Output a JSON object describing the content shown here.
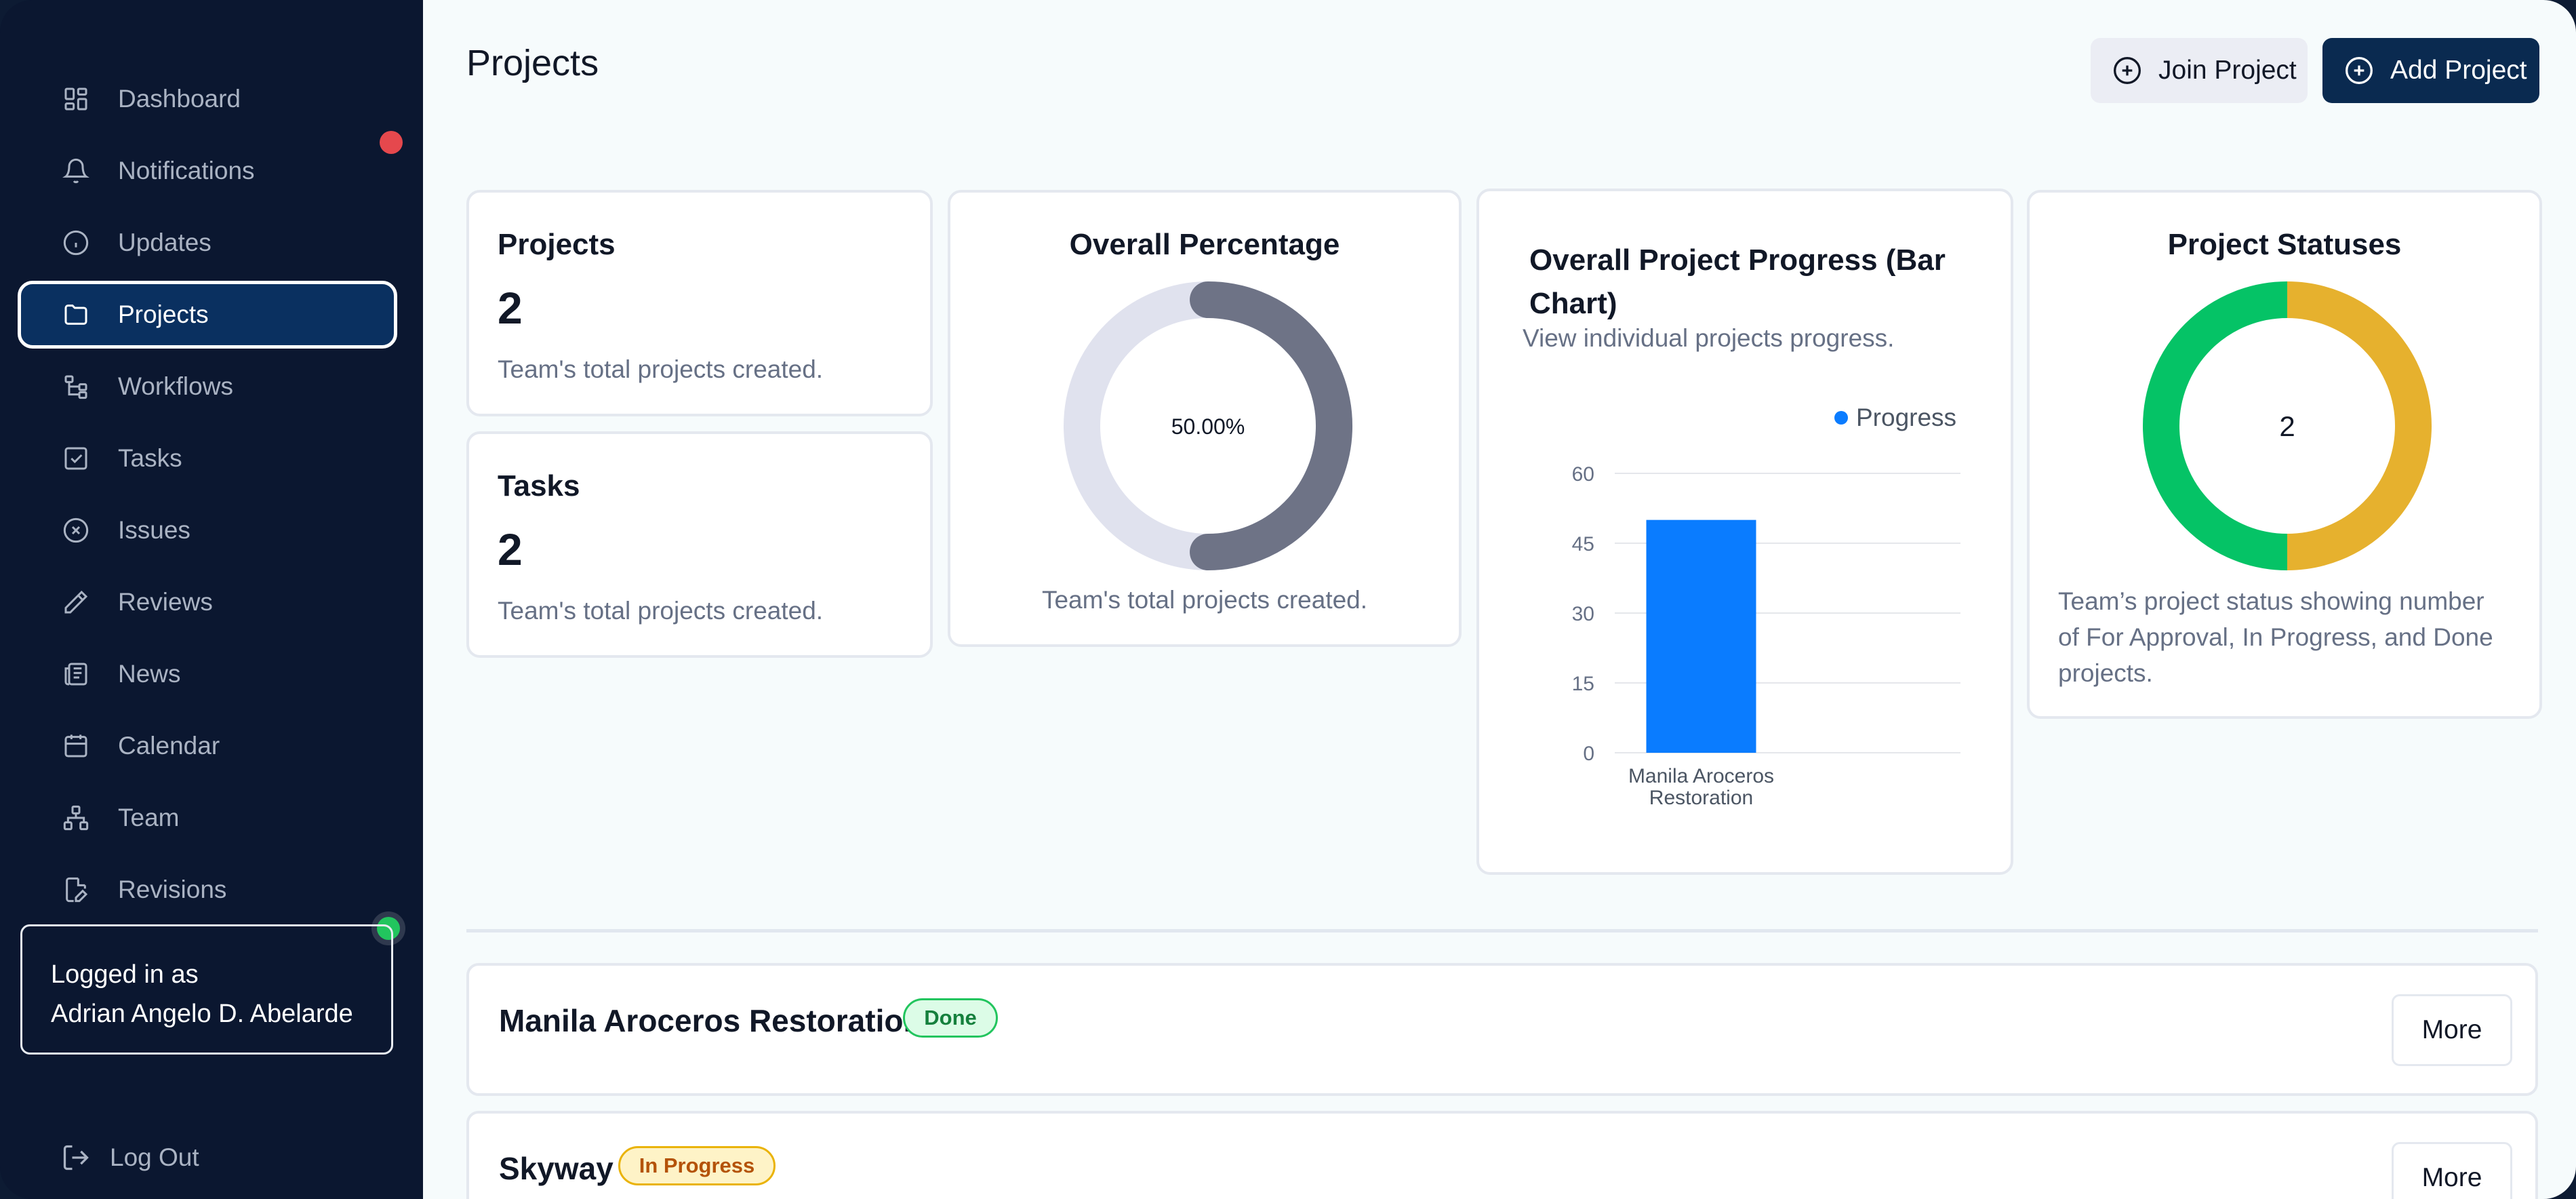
{
  "sidebar": {
    "items": [
      {
        "label": "Dashboard",
        "icon": "dashboard-icon"
      },
      {
        "label": "Notifications",
        "icon": "bell-icon"
      },
      {
        "label": "Updates",
        "icon": "info-icon"
      },
      {
        "label": "Projects",
        "icon": "folder-icon",
        "active": true
      },
      {
        "label": "Workflows",
        "icon": "workflow-icon"
      },
      {
        "label": "Tasks",
        "icon": "checkbox-icon"
      },
      {
        "label": "Issues",
        "icon": "x-circle-icon"
      },
      {
        "label": "Reviews",
        "icon": "pencil-icon"
      },
      {
        "label": "News",
        "icon": "newspaper-icon"
      },
      {
        "label": "Calendar",
        "icon": "calendar-icon"
      },
      {
        "label": "Team",
        "icon": "team-icon"
      },
      {
        "label": "Revisions",
        "icon": "file-edit-icon"
      }
    ],
    "login_label": "Logged in as",
    "user_name": "Adrian Angelo D. Abelarde",
    "logout_label": "Log Out"
  },
  "header": {
    "title": "Projects",
    "join_label": "Join Project",
    "add_label": "Add Project"
  },
  "stats": {
    "projects": {
      "title": "Projects",
      "value": "2",
      "desc": "Team's total projects created."
    },
    "tasks": {
      "title": "Tasks",
      "value": "2",
      "desc": "Team's total projects created."
    }
  },
  "overall_percentage": {
    "title": "Overall Percentage",
    "label": "50.00%",
    "desc": "Team's total projects created.",
    "fraction": 0.5
  },
  "bar_card": {
    "title_line1": "Overall Project Progress (Bar",
    "title_line2": "Chart)",
    "subtitle": "View individual projects progress."
  },
  "status_card": {
    "title": "Project Statuses",
    "center_label": "2",
    "desc_line1": "Team’s project status showing number",
    "desc_line2": "of For Approval, In Progress, and Done",
    "desc_line3": "projects."
  },
  "chart_data": [
    {
      "type": "bar",
      "title": "Overall Project Progress (Bar Chart)",
      "categories": [
        [
          "Manila Aroceros",
          "Restoration"
        ]
      ],
      "series": [
        {
          "name": "Progress",
          "values": [
            50
          ],
          "color": "#0a7cff"
        }
      ],
      "y_ticks": [
        0,
        15,
        30,
        45,
        60
      ],
      "ylim": [
        0,
        60
      ],
      "legend": "top-right",
      "grid": true
    },
    {
      "type": "pie",
      "title": "Project Statuses",
      "donut": true,
      "center_text": "2",
      "slices": [
        {
          "value": 1,
          "color": "#e6b12e"
        },
        {
          "value": 1,
          "color": "#05c366"
        }
      ]
    }
  ],
  "projects": [
    {
      "name": "Manila Aroceros Restoration",
      "status": "Done",
      "more_label": "More"
    },
    {
      "name": "Skyway",
      "status": "In Progress",
      "more_label": "More"
    }
  ],
  "colors": {
    "sidebar_bg": "#0b1730",
    "accent": "#0a2a50",
    "bar": "#0a7cff",
    "done": "#05c366",
    "in_progress": "#e6b12e"
  }
}
